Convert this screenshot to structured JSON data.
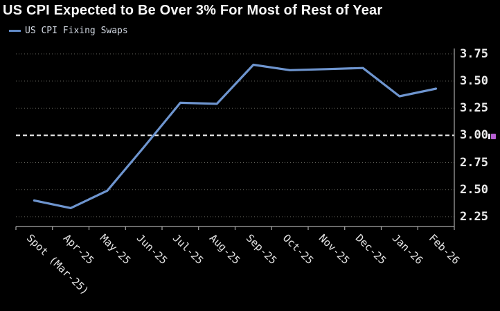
{
  "header": {
    "title": "US CPI Expected to Be Over 3% For Most of Rest of Year"
  },
  "legend": {
    "label": "US CPI Fixing Swaps"
  },
  "colors": {
    "background": "#000000",
    "title_text": "#f7f7f7",
    "series_line": "#6e95cf",
    "legend_dash": "#6089c5",
    "gridline": "#62625a",
    "reference_line": "#f0f0f0",
    "axis_line": "#a8a8a8",
    "axis_text": "#ececec",
    "marker_accent": "#b75fd3"
  },
  "chart_data": {
    "type": "line",
    "title": "US CPI Expected to Be Over 3% For Most of Rest of Year",
    "categories": [
      "Spot (Mar-25)",
      "Apr-25",
      "May-25",
      "Jun-25",
      "Jul-25",
      "Aug-25",
      "Sep-25",
      "Oct-25",
      "Nov-25",
      "Dec-25",
      "Jan-26",
      "Feb-26"
    ],
    "series": [
      {
        "name": "US CPI Fixing Swaps",
        "values": [
          2.4,
          2.33,
          2.49,
          2.89,
          3.3,
          3.29,
          3.65,
          3.6,
          3.61,
          3.62,
          3.36,
          3.43
        ]
      }
    ],
    "y_ticks": [
      "3.75",
      "3.50",
      "3.25",
      "3.00",
      "2.75",
      "2.50",
      "2.25"
    ],
    "ylim": [
      2.16,
      3.8
    ],
    "reference_line": {
      "value": 3.0,
      "label": "3.00",
      "style": "dashed"
    },
    "grid": "dotted-horizontal",
    "legend_position": "top-left",
    "y_axis_side": "right",
    "x_label_rotation_deg": 44
  }
}
